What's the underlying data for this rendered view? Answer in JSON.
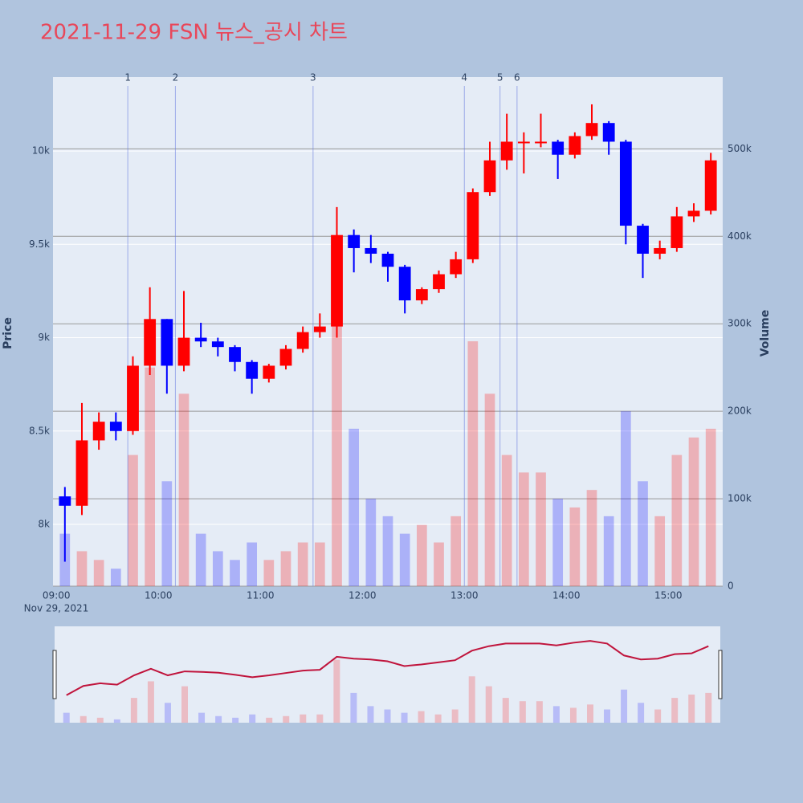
{
  "chart_data": {
    "type": "candlestick",
    "title": "2021-11-29 FSN 뉴스_공시 차트",
    "x": [
      "09:00",
      "09:10",
      "09:20",
      "09:30",
      "09:40",
      "09:50",
      "10:00",
      "10:10",
      "10:20",
      "10:30",
      "10:40",
      "10:50",
      "11:00",
      "11:10",
      "11:20",
      "11:30",
      "11:40",
      "11:50",
      "12:00",
      "12:10",
      "12:20",
      "12:30",
      "12:40",
      "12:50",
      "13:00",
      "13:10",
      "13:20",
      "13:30",
      "13:40",
      "13:50",
      "14:00",
      "14:10",
      "14:20",
      "14:30",
      "14:40",
      "14:50",
      "15:00",
      "15:10",
      "15:20"
    ],
    "open": [
      8150,
      8100,
      8450,
      8550,
      8500,
      8850,
      9100,
      8850,
      9000,
      8980,
      8950,
      8870,
      8780,
      8850,
      8940,
      9030,
      9060,
      9550,
      9480,
      9450,
      9380,
      9200,
      9260,
      9340,
      9420,
      9780,
      9950,
      10050,
      10050,
      10050,
      9980,
      10080,
      10150,
      10050,
      9600,
      9450,
      9480,
      9650,
      9680
    ],
    "high": [
      8200,
      8650,
      8600,
      8600,
      8900,
      9270,
      9100,
      9250,
      9080,
      9000,
      8960,
      8880,
      8860,
      8960,
      9060,
      9130,
      9700,
      9580,
      9550,
      9460,
      9390,
      9270,
      9360,
      9460,
      9800,
      10050,
      10200,
      10100,
      10200,
      10060,
      10100,
      10250,
      10160,
      10060,
      9610,
      9520,
      9700,
      9720,
      9990
    ],
    "low": [
      7800,
      8050,
      8400,
      8450,
      8480,
      8800,
      8700,
      8820,
      8950,
      8900,
      8820,
      8700,
      8760,
      8830,
      8920,
      9000,
      9000,
      9350,
      9400,
      9300,
      9130,
      9180,
      9240,
      9320,
      9400,
      9760,
      9900,
      9880,
      10020,
      9850,
      9960,
      10060,
      9980,
      9500,
      9320,
      9420,
      9460,
      9620,
      9660
    ],
    "close": [
      8100,
      8450,
      8550,
      8500,
      8850,
      9100,
      8850,
      9000,
      8980,
      8950,
      8870,
      8780,
      8850,
      8940,
      9030,
      9060,
      9550,
      9480,
      9450,
      9380,
      9200,
      9260,
      9340,
      9420,
      9780,
      9950,
      10050,
      10050,
      10050,
      9980,
      10080,
      10150,
      10050,
      9600,
      9450,
      9480,
      9650,
      9680,
      9950
    ],
    "volume": [
      60000,
      40000,
      30000,
      20000,
      150000,
      250000,
      120000,
      220000,
      60000,
      40000,
      30000,
      50000,
      30000,
      40000,
      50000,
      50000,
      380000,
      180000,
      100000,
      80000,
      60000,
      70000,
      50000,
      80000,
      280000,
      220000,
      150000,
      130000,
      130000,
      100000,
      90000,
      110000,
      80000,
      200000,
      120000,
      80000,
      150000,
      170000,
      180000
    ],
    "up_color": "#ff0000",
    "down_color": "#0000ff",
    "xlim": [
      "08:58",
      "15:32"
    ],
    "xticks": [
      "09:00",
      "10:00",
      "11:00",
      "12:00",
      "13:00",
      "14:00",
      "15:00"
    ],
    "x_sublabel": "Nov 29, 2021",
    "ylim": [
      7669,
      10396
    ],
    "yticks": [
      {
        "value": 8000,
        "label": "8k"
      },
      {
        "value": 8500,
        "label": "8.5k"
      },
      {
        "value": 9000,
        "label": "9k"
      },
      {
        "value": 9500,
        "label": "9.5k"
      },
      {
        "value": 10000,
        "label": "10k"
      }
    ],
    "y2lim": [
      0,
      582000
    ],
    "y2ticks": [
      0,
      {
        "value": 100000,
        "label": "100k"
      },
      {
        "value": 200000,
        "label": "200k"
      },
      {
        "value": 300000,
        "label": "300k"
      },
      {
        "value": 400000,
        "label": "400k"
      },
      {
        "value": 500000,
        "label": "500k"
      }
    ],
    "ylabel": "Price",
    "y2label": "Volume",
    "events": [
      {
        "x": "09:42",
        "label": "1"
      },
      {
        "x": "10:10",
        "label": "2"
      },
      {
        "x": "11:31",
        "label": "3"
      },
      {
        "x": "13:00",
        "label": "4"
      },
      {
        "x": "13:21",
        "label": "5"
      },
      {
        "x": "13:31",
        "label": "6"
      }
    ]
  }
}
